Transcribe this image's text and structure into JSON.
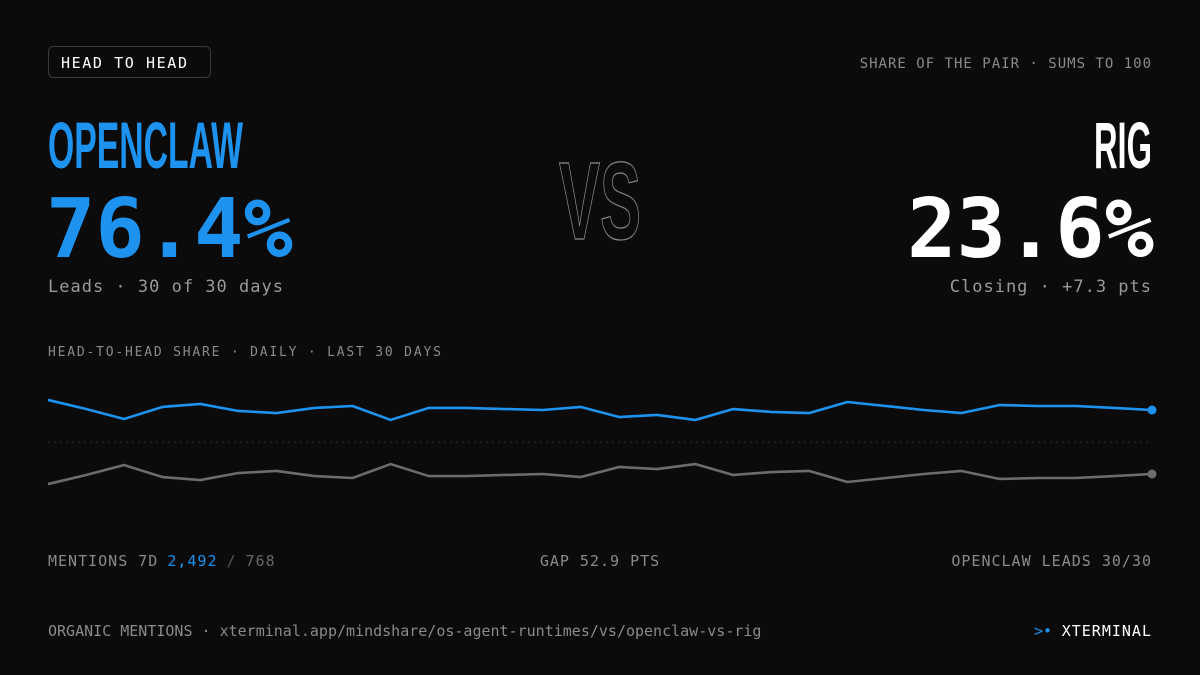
{
  "badge": "HEAD TO HEAD",
  "top_note": "SHARE OF THE PAIR · SUMS TO 100",
  "left": {
    "name": "OPENCLAW",
    "share": "76.4%",
    "caption": "Leads · 30 of 30 days"
  },
  "versus": "VS",
  "right": {
    "name": "RIG",
    "share": "23.6%",
    "caption": "Closing · +7.3 pts"
  },
  "chart_data": {
    "type": "line",
    "title": "HEAD-TO-HEAD SHARE · DAILY · LAST 30 DAYS",
    "categories": [
      null,
      null,
      null,
      null,
      null,
      null,
      null,
      null,
      null,
      null,
      null,
      null,
      null,
      null,
      null,
      null,
      null,
      null,
      null,
      null,
      null,
      null,
      null,
      null,
      null,
      null,
      null,
      null,
      null,
      null
    ],
    "ylim": [
      0,
      100
    ],
    "series": [
      {
        "name": "OPENCLAW",
        "color": "#1d93ef",
        "values": [
          84.7,
          77.2,
          69.0,
          78.9,
          81.4,
          75.6,
          73.9,
          78.1,
          79.7,
          68.2,
          78.1,
          78.1,
          77.2,
          76.4,
          78.9,
          70.6,
          72.3,
          68.2,
          77.2,
          74.8,
          73.9,
          83.0,
          79.7,
          76.4,
          73.9,
          80.5,
          79.7,
          79.7,
          78.1,
          76.4
        ]
      },
      {
        "name": "RIG",
        "color": "#6b6b70",
        "values": [
          15.3,
          22.8,
          31.0,
          21.1,
          18.6,
          24.4,
          26.1,
          21.9,
          20.3,
          31.8,
          21.9,
          21.9,
          22.8,
          23.6,
          21.1,
          29.4,
          27.7,
          31.8,
          22.8,
          25.2,
          26.1,
          17.0,
          20.3,
          23.6,
          26.1,
          19.5,
          20.3,
          20.3,
          21.9,
          23.6
        ]
      }
    ]
  },
  "stats": {
    "mentions_label": "MENTIONS 7D",
    "mentions_left": "2,492",
    "separator": "/",
    "mentions_right": "768",
    "gap": "GAP 52.9 PTS",
    "leads": "OPENCLAW LEADS 30/30"
  },
  "footer": {
    "source": "ORGANIC MENTIONS · xterminal.app/mindshare/os-agent-runtimes/vs/openclaw-vs-rig",
    "logo_mark": ">•",
    "brand": "XTERMINAL"
  }
}
